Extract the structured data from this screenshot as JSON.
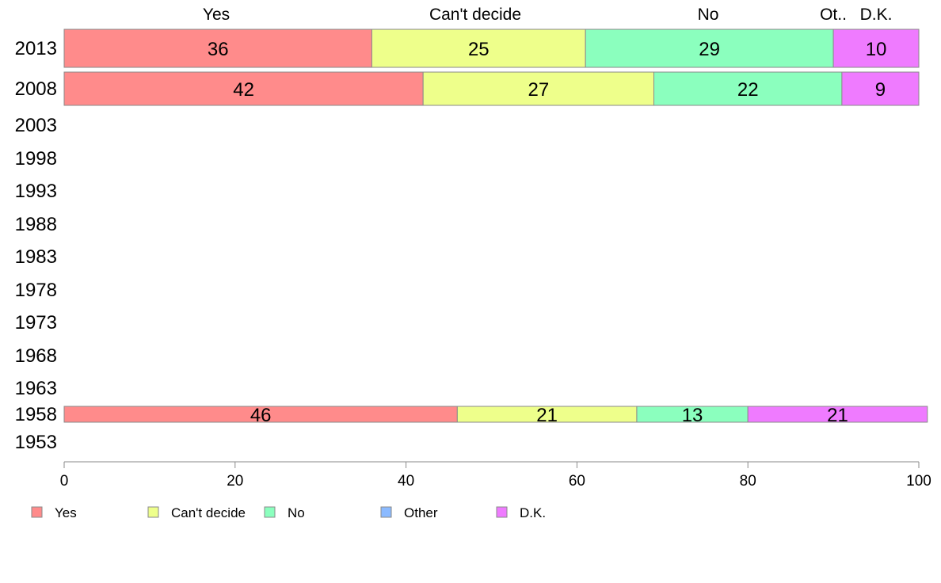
{
  "chart_data": {
    "type": "bar",
    "orientation": "horizontal",
    "stacked": true,
    "categories": [
      "2013",
      "2008",
      "2003",
      "1998",
      "1993",
      "1988",
      "1983",
      "1978",
      "1973",
      "1968",
      "1963",
      "1958",
      "1953"
    ],
    "series": [
      {
        "name": "Yes",
        "color": "#ff8b8b",
        "values": [
          36,
          42,
          null,
          null,
          null,
          null,
          null,
          null,
          null,
          null,
          null,
          46,
          null
        ]
      },
      {
        "name": "Can't decide",
        "color": "#eeff8b",
        "values": [
          25,
          27,
          null,
          null,
          null,
          null,
          null,
          null,
          null,
          null,
          null,
          21,
          null
        ]
      },
      {
        "name": "No",
        "color": "#8bffbe",
        "values": [
          29,
          22,
          null,
          null,
          null,
          null,
          null,
          null,
          null,
          null,
          null,
          13,
          null
        ]
      },
      {
        "name": "Other",
        "color": "#8bbaff",
        "values": [
          0,
          0,
          null,
          null,
          null,
          null,
          null,
          null,
          null,
          null,
          null,
          0,
          null
        ]
      },
      {
        "name": "D.K.",
        "color": "#ef7bff",
        "values": [
          10,
          9,
          null,
          null,
          null,
          null,
          null,
          null,
          null,
          null,
          null,
          21,
          null
        ]
      }
    ],
    "column_headers": [
      "Yes",
      "Can't decide",
      "No",
      "Ot..",
      "D.K."
    ],
    "xlim": [
      0,
      100
    ],
    "xticks": [
      "0",
      "20",
      "40",
      "60",
      "80",
      "100"
    ],
    "grid": false,
    "legend_position": "bottom"
  }
}
